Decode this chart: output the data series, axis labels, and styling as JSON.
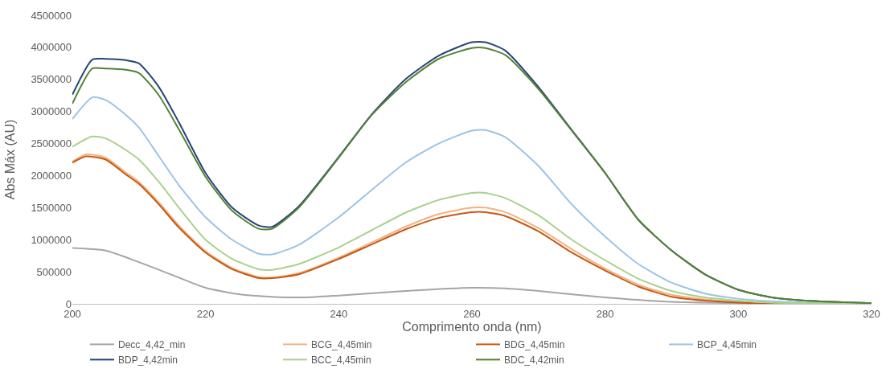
{
  "chart_data": {
    "type": "line",
    "xlabel": "Comprimento onda (nm)",
    "ylabel": "Abs Máx (AU)",
    "xlim": [
      200,
      320
    ],
    "xticks": [
      200,
      220,
      240,
      260,
      280,
      300,
      320
    ],
    "ylim": [
      0,
      4500000
    ],
    "yticks": [
      0,
      500000,
      1000000,
      1500000,
      2000000,
      2500000,
      3000000,
      3500000,
      4000000,
      4500000
    ],
    "grid": false,
    "legend": "bottom",
    "marker": "none",
    "line_style": "solid",
    "series": [
      {
        "name": "Decc_4,42_min",
        "color": "#a5a5a5",
        "x": [
          200,
          205,
          210,
          215,
          220,
          225,
          230,
          235,
          240,
          250,
          260,
          265,
          270,
          280,
          290,
          300,
          320
        ],
        "values": [
          870000,
          830000,
          650000,
          450000,
          250000,
          150000,
          110000,
          100000,
          130000,
          200000,
          250000,
          240000,
          200000,
          100000,
          30000,
          10000,
          0
        ]
      },
      {
        "name": "BCG_4,45min",
        "color": "#f4b183",
        "x": [
          200,
          202,
          205,
          208,
          210,
          213,
          216,
          220,
          224,
          228,
          230,
          234,
          240,
          245,
          250,
          255,
          260,
          262,
          265,
          270,
          275,
          280,
          285,
          290,
          295,
          300,
          305
        ],
        "values": [
          2220000,
          2330000,
          2280000,
          2050000,
          1900000,
          1580000,
          1220000,
          820000,
          560000,
          420000,
          410000,
          480000,
          720000,
          960000,
          1200000,
          1400000,
          1500000,
          1500000,
          1430000,
          1180000,
          850000,
          550000,
          300000,
          140000,
          70000,
          30000,
          10000
        ]
      },
      {
        "name": "BDG_4,45min",
        "color": "#c55a11",
        "x": [
          200,
          202,
          205,
          208,
          210,
          213,
          216,
          220,
          224,
          228,
          230,
          234,
          240,
          245,
          250,
          255,
          260,
          262,
          265,
          270,
          275,
          280,
          285,
          290,
          295,
          300,
          305,
          310,
          320
        ],
        "values": [
          2200000,
          2300000,
          2250000,
          2020000,
          1870000,
          1550000,
          1190000,
          800000,
          540000,
          400000,
          400000,
          460000,
          700000,
          930000,
          1160000,
          1340000,
          1430000,
          1430000,
          1370000,
          1130000,
          800000,
          520000,
          270000,
          110000,
          50000,
          20000,
          0,
          0,
          0
        ]
      },
      {
        "name": "BCP_4,45min",
        "color": "#9dc3e6",
        "x": [
          200,
          203,
          205,
          208,
          210,
          213,
          216,
          220,
          224,
          228,
          230,
          234,
          240,
          245,
          250,
          255,
          260,
          262,
          265,
          270,
          275,
          280,
          285,
          290,
          295,
          300,
          305,
          310,
          320
        ],
        "values": [
          2880000,
          3220000,
          3180000,
          2950000,
          2750000,
          2300000,
          1850000,
          1350000,
          1000000,
          780000,
          770000,
          920000,
          1350000,
          1780000,
          2200000,
          2500000,
          2700000,
          2710000,
          2600000,
          2150000,
          1550000,
          1050000,
          620000,
          330000,
          160000,
          80000,
          40000,
          20000,
          10000
        ]
      },
      {
        "name": "BDP_4,42min",
        "color": "#264478",
        "x": [
          200,
          203,
          205,
          208,
          210,
          213,
          216,
          220,
          224,
          228,
          230,
          234,
          240,
          245,
          250,
          255,
          260,
          262,
          265,
          270,
          275,
          280,
          285,
          290,
          295,
          300,
          305,
          310,
          320
        ],
        "values": [
          3260000,
          3810000,
          3820000,
          3800000,
          3750000,
          3380000,
          2830000,
          2040000,
          1500000,
          1220000,
          1200000,
          1520000,
          2290000,
          2960000,
          3500000,
          3870000,
          4080000,
          4080000,
          3950000,
          3380000,
          2710000,
          2040000,
          1310000,
          830000,
          460000,
          220000,
          100000,
          50000,
          10000
        ]
      },
      {
        "name": "BCC_4,45min",
        "color": "#a9d18e",
        "x": [
          200,
          203,
          205,
          208,
          210,
          213,
          216,
          220,
          224,
          228,
          230,
          234,
          240,
          245,
          250,
          255,
          260,
          262,
          265,
          270,
          275,
          280,
          285,
          290,
          295,
          300,
          305,
          310,
          320
        ],
        "values": [
          2450000,
          2610000,
          2580000,
          2400000,
          2250000,
          1900000,
          1500000,
          1000000,
          700000,
          540000,
          530000,
          620000,
          880000,
          1150000,
          1420000,
          1620000,
          1730000,
          1730000,
          1650000,
          1380000,
          1000000,
          680000,
          390000,
          200000,
          100000,
          50000,
          20000,
          10000,
          0
        ]
      },
      {
        "name": "BDC_4,42min",
        "color": "#548235",
        "x": [
          200,
          203,
          205,
          208,
          210,
          213,
          216,
          220,
          224,
          228,
          230,
          234,
          240,
          245,
          250,
          255,
          260,
          262,
          265,
          270,
          275,
          280,
          285,
          290,
          295,
          300,
          305,
          310,
          320
        ],
        "values": [
          3120000,
          3670000,
          3670000,
          3650000,
          3600000,
          3250000,
          2720000,
          1980000,
          1450000,
          1170000,
          1170000,
          1500000,
          2280000,
          2950000,
          3450000,
          3820000,
          3990000,
          3990000,
          3880000,
          3350000,
          2700000,
          2040000,
          1310000,
          830000,
          460000,
          220000,
          100000,
          50000,
          10000
        ]
      }
    ]
  }
}
